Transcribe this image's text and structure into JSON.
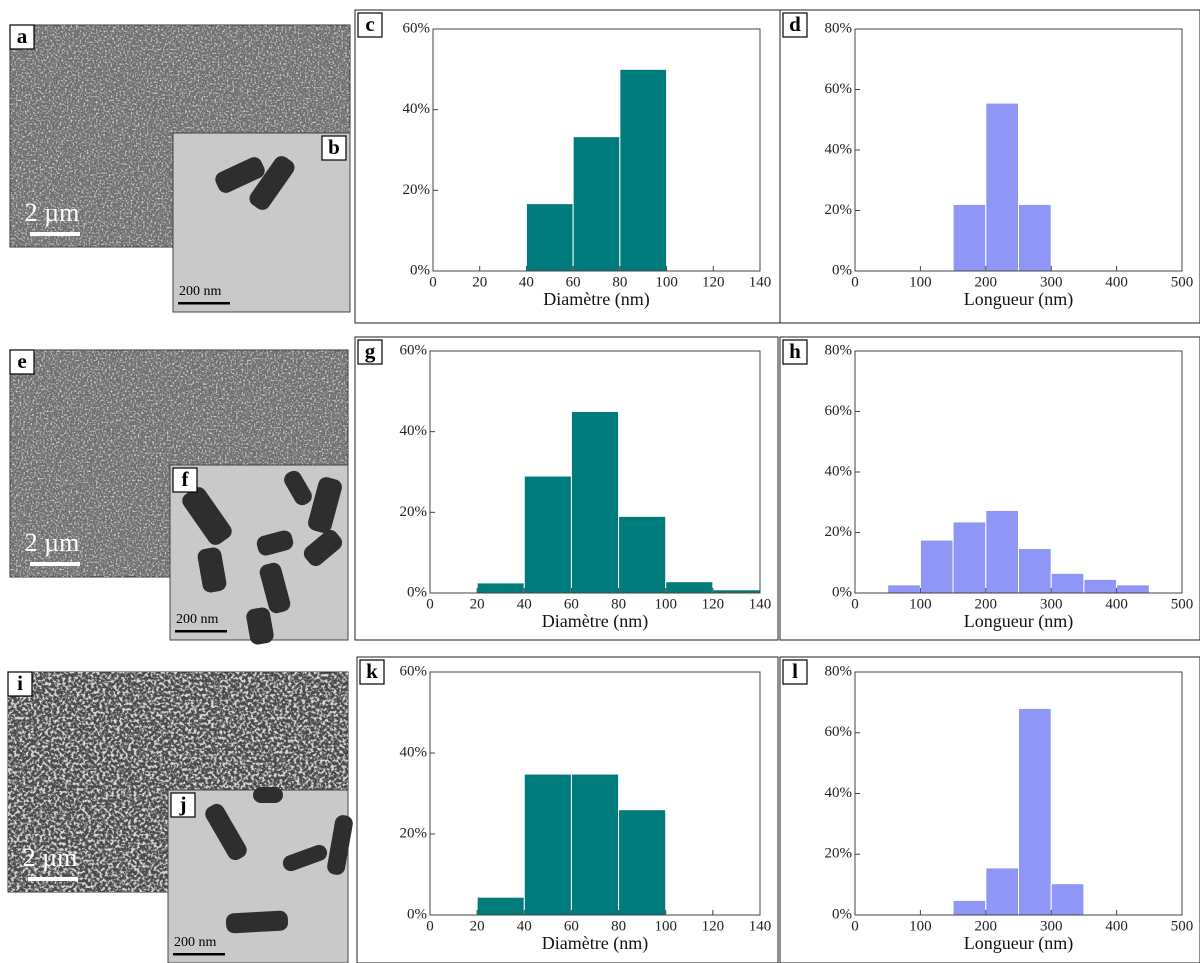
{
  "panels": [
    {
      "label": "a",
      "scale_bar": "2 µm"
    },
    {
      "label": "b",
      "scale_bar": "200 nm"
    },
    {
      "label": "e",
      "scale_bar": "2 µm"
    },
    {
      "label": "f",
      "scale_bar": "200 nm"
    },
    {
      "label": "i",
      "scale_bar": "2 µm"
    },
    {
      "label": "j",
      "scale_bar": "200 nm"
    }
  ],
  "chart_data": [
    {
      "type": "histogram",
      "label": "c",
      "xlabel": "Diamètre (nm)",
      "color": "#007b7b",
      "bins": [
        40,
        60,
        80,
        100
      ],
      "values": [
        16.7,
        33.3,
        50
      ],
      "xlim": [
        0,
        140
      ],
      "xticks": [
        0,
        20,
        40,
        60,
        80,
        100,
        120,
        140
      ],
      "ylim": [
        0,
        60
      ],
      "yticks": [
        {
          "value": 0,
          "label": "0%"
        },
        {
          "value": 20,
          "label": "20%"
        },
        {
          "value": 40,
          "label": "40%"
        },
        {
          "value": 60,
          "label": "60%"
        }
      ]
    },
    {
      "type": "histogram",
      "label": "d",
      "xlabel": "Longueur (nm)",
      "color": "#8f96f5",
      "bins": [
        150,
        200,
        250,
        300
      ],
      "values": [
        22,
        55.5,
        22
      ],
      "xlim": [
        0,
        500
      ],
      "xticks": [
        0,
        100,
        200,
        300,
        400,
        500
      ],
      "ylim": [
        0,
        80
      ],
      "yticks": [
        {
          "value": 0,
          "label": "0%"
        },
        {
          "value": 20,
          "label": "20%"
        },
        {
          "value": 40,
          "label": "40%"
        },
        {
          "value": 60,
          "label": "60%"
        },
        {
          "value": 80,
          "label": "80%"
        }
      ]
    },
    {
      "type": "histogram",
      "label": "g",
      "xlabel": "Diamètre (nm)",
      "color": "#007b7b",
      "bins": [
        20,
        40,
        60,
        80,
        100,
        120,
        140
      ],
      "values": [
        2.5,
        29,
        45,
        19,
        2.8,
        0.8
      ],
      "xlim": [
        0,
        140
      ],
      "xticks": [
        0,
        20,
        40,
        60,
        80,
        100,
        120,
        140
      ],
      "ylim": [
        0,
        60
      ],
      "yticks": [
        {
          "value": 0,
          "label": "0%"
        },
        {
          "value": 20,
          "label": "20%"
        },
        {
          "value": 40,
          "label": "40%"
        },
        {
          "value": 60,
          "label": "60%"
        }
      ]
    },
    {
      "type": "histogram",
      "label": "h",
      "xlabel": "Longueur (nm)",
      "color": "#8f96f5",
      "bins": [
        50,
        100,
        150,
        200,
        250,
        300,
        350,
        400,
        450
      ],
      "values": [
        2.7,
        17.5,
        23.5,
        27.3,
        14.7,
        6.5,
        4.5,
        2.7
      ],
      "xlim": [
        0,
        500
      ],
      "xticks": [
        0,
        100,
        200,
        300,
        400,
        500
      ],
      "ylim": [
        0,
        80
      ],
      "yticks": [
        {
          "value": 0,
          "label": "0%"
        },
        {
          "value": 20,
          "label": "20%"
        },
        {
          "value": 40,
          "label": "40%"
        },
        {
          "value": 60,
          "label": "60%"
        },
        {
          "value": 80,
          "label": "80%"
        }
      ]
    },
    {
      "type": "histogram",
      "label": "k",
      "xlabel": "Diamètre (nm)",
      "color": "#007b7b",
      "bins": [
        20,
        40,
        60,
        80,
        100
      ],
      "values": [
        4.4,
        34.8,
        34.8,
        26
      ],
      "xlim": [
        0,
        140
      ],
      "xticks": [
        0,
        20,
        40,
        60,
        80,
        100,
        120,
        140
      ],
      "ylim": [
        0,
        60
      ],
      "yticks": [
        {
          "value": 0,
          "label": "0%"
        },
        {
          "value": 20,
          "label": "20%"
        },
        {
          "value": 40,
          "label": "40%"
        },
        {
          "value": 60,
          "label": "60%"
        }
      ]
    },
    {
      "type": "histogram",
      "label": "l",
      "xlabel": "Longueur (nm)",
      "color": "#8f96f5",
      "bins": [
        150,
        200,
        250,
        300,
        350
      ],
      "values": [
        4.8,
        15.5,
        68,
        10.3
      ],
      "xlim": [
        0,
        500
      ],
      "xticks": [
        0,
        100,
        200,
        300,
        400,
        500
      ],
      "ylim": [
        0,
        80
      ],
      "yticks": [
        {
          "value": 0,
          "label": "0%"
        },
        {
          "value": 20,
          "label": "20%"
        },
        {
          "value": 40,
          "label": "40%"
        },
        {
          "value": 60,
          "label": "60%"
        },
        {
          "value": 80,
          "label": "80%"
        }
      ]
    }
  ]
}
